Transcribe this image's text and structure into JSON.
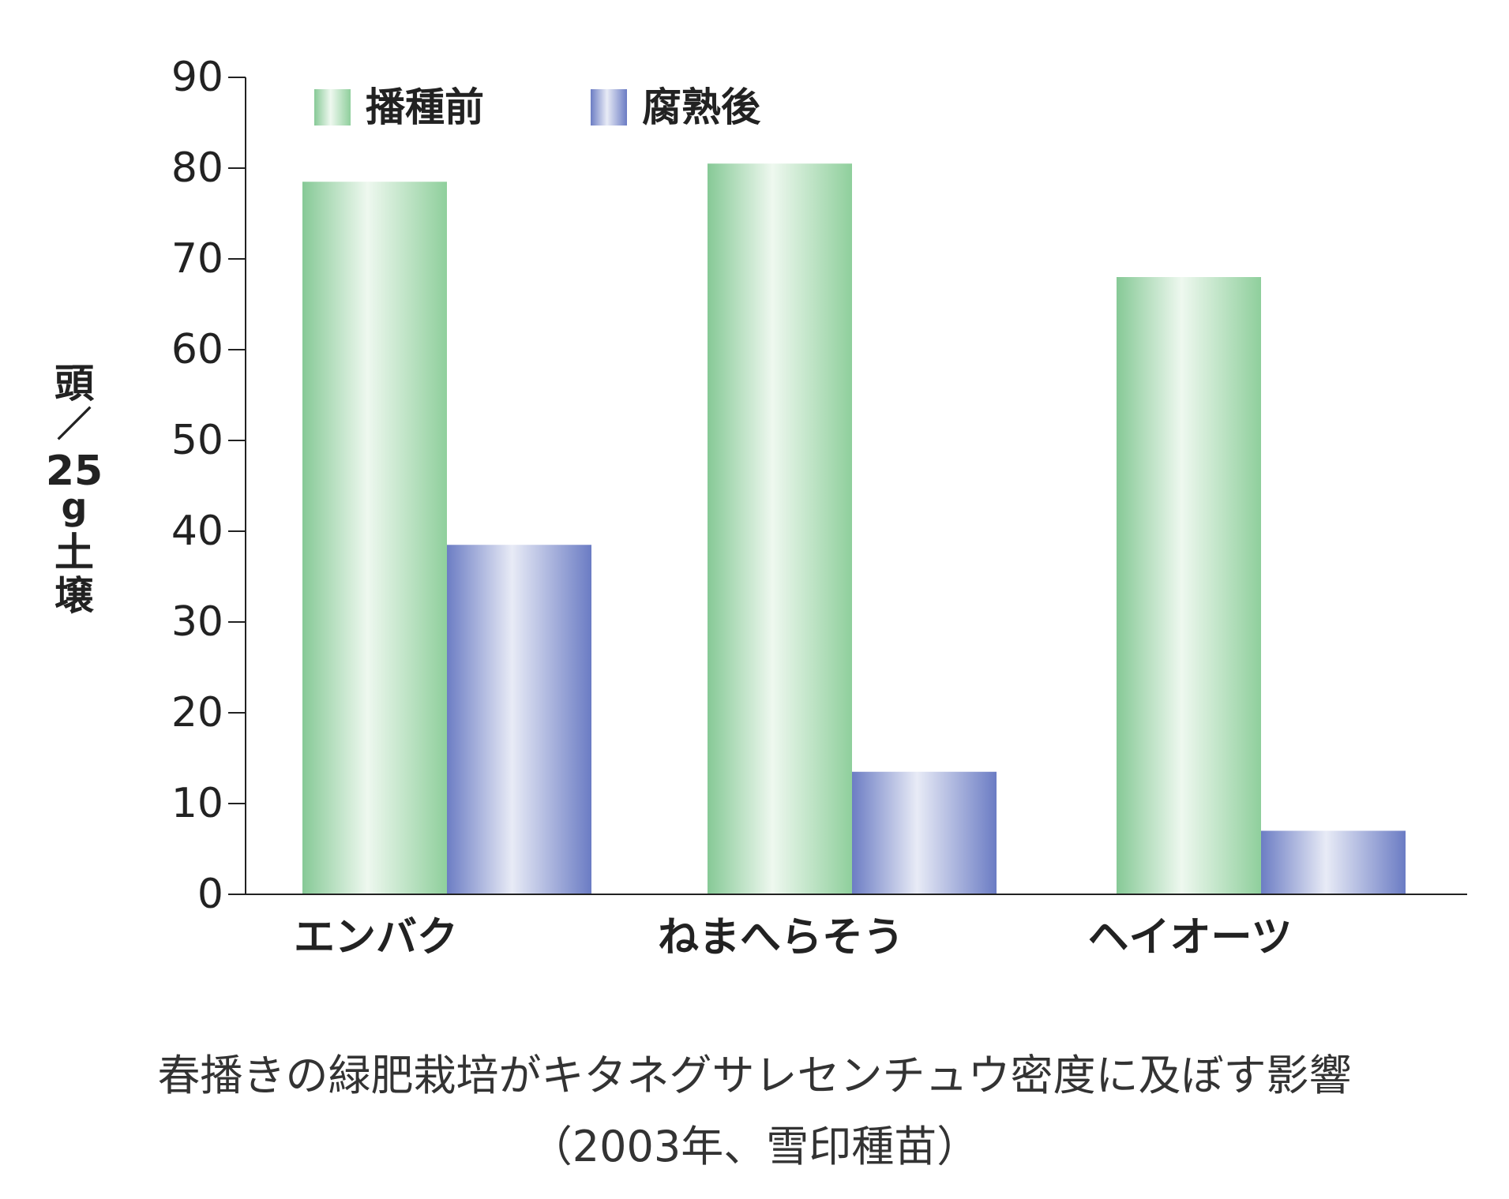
{
  "chart_data": {
    "type": "bar",
    "categories": [
      "エンバク",
      "ねまへらそう",
      "ヘイオーツ"
    ],
    "series": [
      {
        "name": "播種前",
        "values": [
          78.5,
          80.5,
          68.0
        ],
        "color": "#8fcf9c"
      },
      {
        "name": "腐熟後",
        "values": [
          38.5,
          13.5,
          7.0
        ],
        "color": "#6f80c6"
      }
    ],
    "ylim": [
      0,
      90
    ],
    "yticks": [
      "0",
      "10",
      "20",
      "30",
      "40",
      "50",
      "60",
      "70",
      "80",
      "90"
    ],
    "ylabel_lines": [
      "頭",
      "／",
      "25",
      "g",
      "土",
      "壌"
    ],
    "legend_position": "top-left",
    "grid": false
  },
  "caption": {
    "line1": "春播きの緑肥栽培がキタネグサレセンチュウ密度に及ぼす影響",
    "line2": "（2003年、雪印種苗）"
  }
}
